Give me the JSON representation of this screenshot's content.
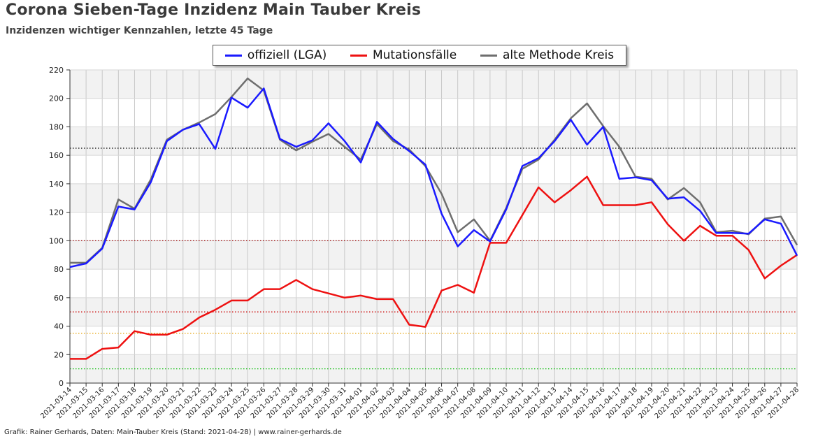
{
  "header": {
    "title": "Corona Sieben-Tage Inzidenz Main Tauber Kreis",
    "subtitle": "Inzidenzen wichtiger Kennzahlen, letzte 45 Tage"
  },
  "footer": {
    "credit": "Grafik: Rainer Gerhards, Daten: Main-Tauber Kreis (Stand: 2021-04-28) | www.rainer-gerhards.de"
  },
  "legend": {
    "items": [
      {
        "label": "offiziell (LGA)",
        "color": "#1a1aff"
      },
      {
        "label": "Mutationsfälle",
        "color": "#ee1111"
      },
      {
        "label": "alte Methode Kreis",
        "color": "#6e6e6e"
      }
    ]
  },
  "chart_data": {
    "type": "line",
    "title": "Corona Sieben-Tage Inzidenz Main Tauber Kreis",
    "subtitle": "Inzidenzen wichtiger Kennzahlen, letzte 45 Tage",
    "xlabel": "",
    "ylabel": "",
    "ylim": [
      0,
      220
    ],
    "yticks": [
      0,
      20,
      40,
      60,
      80,
      100,
      120,
      140,
      160,
      180,
      200,
      220
    ],
    "grid": true,
    "alternating_bands": true,
    "legend_position": "top-center",
    "categories": [
      "2021-03-14",
      "2021-03-15",
      "2021-03-16",
      "2021-03-17",
      "2021-03-18",
      "2021-03-19",
      "2021-03-20",
      "2021-03-21",
      "2021-03-22",
      "2021-03-23",
      "2021-03-24",
      "2021-03-25",
      "2021-03-26",
      "2021-03-27",
      "2021-03-28",
      "2021-03-29",
      "2021-03-30",
      "2021-03-31",
      "2021-04-01",
      "2021-04-02",
      "2021-04-03",
      "2021-04-04",
      "2021-04-05",
      "2021-04-06",
      "2021-04-07",
      "2021-04-08",
      "2021-04-09",
      "2021-04-10",
      "2021-04-11",
      "2021-04-12",
      "2021-04-13",
      "2021-04-14",
      "2021-04-15",
      "2021-04-16",
      "2021-04-17",
      "2021-04-18",
      "2021-04-19",
      "2021-04-20",
      "2021-04-21",
      "2021-04-22",
      "2021-04-23",
      "2021-04-24",
      "2021-04-25",
      "2021-04-26",
      "2021-04-27",
      "2021-04-28"
    ],
    "series": [
      {
        "name": "offiziell (LGA)",
        "color": "#1a1aff",
        "values": [
          81.5,
          84,
          94.5,
          124,
          122,
          141,
          170,
          178,
          182,
          164.5,
          200.5,
          193.5,
          207,
          171.5,
          166,
          170.5,
          182.5,
          170,
          155,
          183.5,
          171.5,
          163,
          153.5,
          119,
          96,
          107.5,
          99.5,
          122,
          152.5,
          158,
          170,
          185,
          167.5,
          180,
          143.5,
          144.5,
          142.5,
          129.5,
          130.5,
          121,
          105.5,
          105.5,
          105,
          115,
          112,
          89.5
        ]
      },
      {
        "name": "Mutationsfälle",
        "color": "#ee1111",
        "values": [
          17,
          17,
          24,
          25,
          36.5,
          34,
          34,
          38,
          46,
          51.5,
          58,
          58,
          66,
          66,
          72.5,
          66,
          63,
          60,
          61.5,
          59,
          59,
          41,
          39.5,
          65,
          69,
          63.5,
          98.5,
          98.5,
          118,
          137.5,
          127,
          135.5,
          145,
          125,
          125,
          125,
          127,
          111.5,
          100,
          110.5,
          103.5,
          103.5,
          93.5,
          73.5,
          82.5,
          90
        ]
      },
      {
        "name": "alte Methode Kreis",
        "color": "#6e6e6e",
        "values": [
          84.5,
          84.5,
          95,
          129,
          122.5,
          143,
          171,
          178,
          183,
          189,
          201,
          214,
          205.5,
          171,
          163.5,
          169.5,
          175,
          166,
          157,
          182,
          170,
          164,
          152.5,
          133,
          106,
          115,
          100,
          123,
          150.5,
          157,
          171,
          186,
          196.5,
          180.5,
          166,
          145,
          143.5,
          129,
          137,
          127,
          106,
          107,
          104.5,
          115.5,
          117,
          97
        ]
      }
    ],
    "reference_lines": [
      {
        "value": 165,
        "color": "#000000"
      },
      {
        "value": 100,
        "color": "#990000"
      },
      {
        "value": 50,
        "color": "#cc0000"
      },
      {
        "value": 35,
        "color": "#e6a000"
      },
      {
        "value": 10,
        "color": "#00bb00"
      }
    ]
  }
}
